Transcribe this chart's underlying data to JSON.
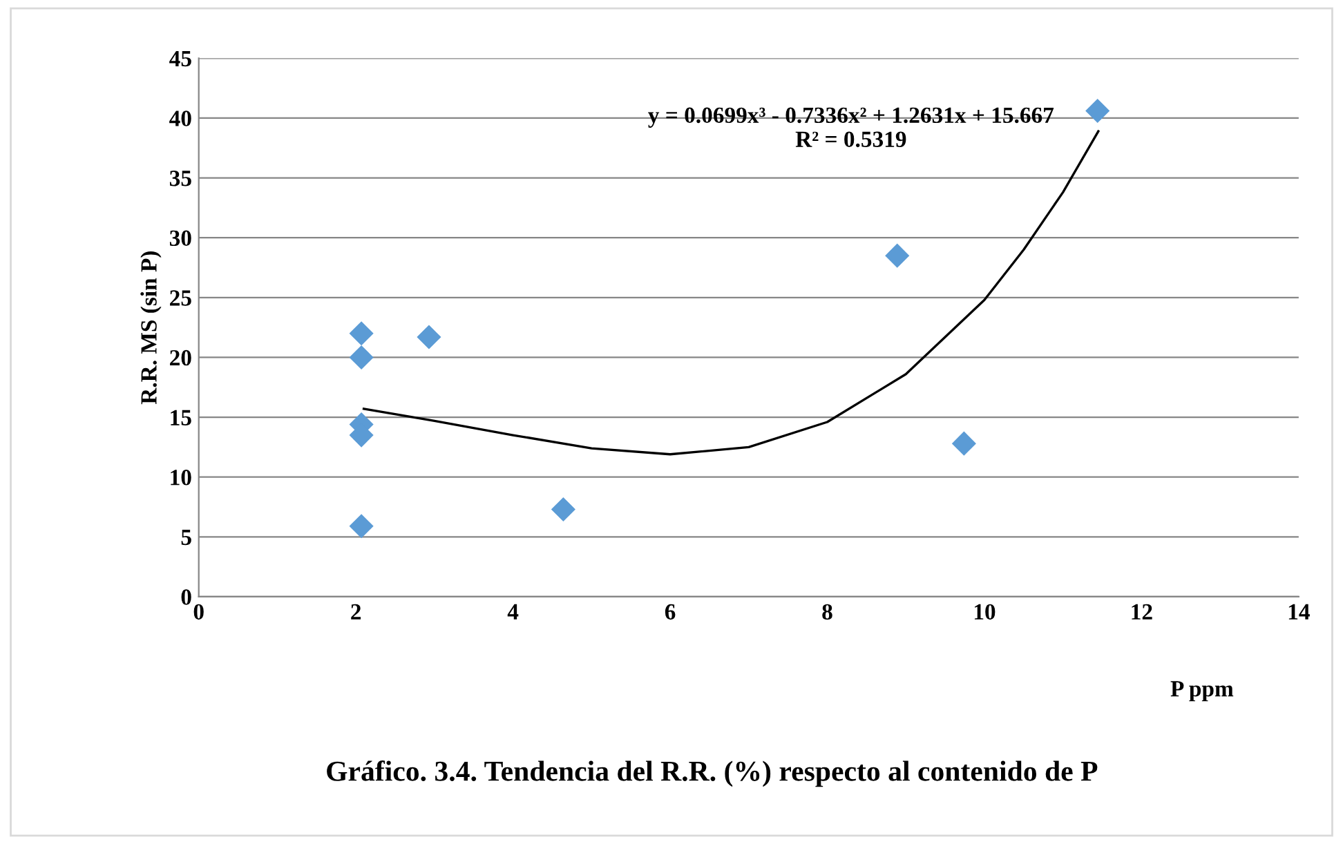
{
  "chart_data": {
    "type": "scatter",
    "title": "Gráfico. 3.4. Tendencia del R.R. (%) respecto al contenido de P",
    "xlabel": "P ppm",
    "ylabel": "R.R. MS (sin P)",
    "xlim": [
      0,
      14
    ],
    "xticks": [
      0,
      2,
      4,
      6,
      8,
      10,
      12,
      14
    ],
    "ylim": [
      0,
      45
    ],
    "yticks": [
      0,
      5,
      10,
      15,
      20,
      25,
      30,
      35,
      40,
      45
    ],
    "grid": "y",
    "legend": false,
    "annotations": [
      "y = 0.0699x³ - 0.7336x² + 1.2631x + 15.667\nR² = 0.5319"
    ],
    "series": [
      {
        "marker": "diamond",
        "color": "#5b9bd5",
        "x": [
          2.07,
          2.07,
          2.07,
          2.07,
          2.07,
          2.93,
          4.64,
          8.89,
          9.74,
          11.44
        ],
        "values": [
          22.0,
          20.0,
          14.4,
          13.5,
          5.9,
          21.7,
          7.3,
          28.5,
          12.8,
          40.6
        ]
      },
      {
        "type": "line",
        "color": "#000000",
        "line_style": "solid",
        "x": [
          2.1,
          3,
          4,
          5,
          6,
          7,
          8,
          9,
          10,
          10.5,
          11,
          11.45
        ],
        "values": [
          15.7,
          14.7,
          13.5,
          12.4,
          11.9,
          12.5,
          14.6,
          18.6,
          24.8,
          29.0,
          33.8,
          38.9
        ]
      }
    ]
  }
}
